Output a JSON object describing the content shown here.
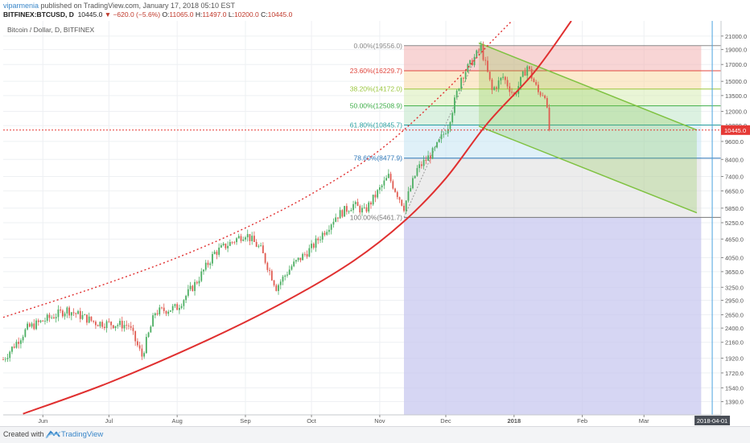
{
  "header": {
    "author": "viparmenia",
    "published": "published on TradingView.com, January 17, 2018 05:10 EST",
    "symbol": "BITFINEX:BTCUSD, D",
    "last": "10445.0",
    "change": "▼ −620.0 (−5.6%)",
    "o_label": "O:",
    "o": "11065.0",
    "h_label": "H:",
    "h": "11497.0",
    "l_label": "L:",
    "l": "10200.0",
    "c_label": "C:",
    "c": "10445.0"
  },
  "footer": {
    "created_with": "Created with",
    "brand": "TradingView"
  },
  "chart_data": {
    "type": "candlestick",
    "title": "Bitcoin / Dollar, D, BITFINEX",
    "scale": "log",
    "ylim": [
      1260,
      23500
    ],
    "xlim": [
      "2017-05-14",
      "2018-04-05"
    ],
    "x_ticks": [
      {
        "date": "2017-06-01",
        "label": "Jun"
      },
      {
        "date": "2017-07-01",
        "label": "Jul"
      },
      {
        "date": "2017-08-01",
        "label": "Aug"
      },
      {
        "date": "2017-09-01",
        "label": "Sep"
      },
      {
        "date": "2017-10-01",
        "label": "Oct"
      },
      {
        "date": "2017-11-01",
        "label": "Nov"
      },
      {
        "date": "2017-12-01",
        "label": "Dec"
      },
      {
        "date": "2018-01-01",
        "label": "2018"
      },
      {
        "date": "2018-02-01",
        "label": "Feb"
      },
      {
        "date": "2018-03-01",
        "label": "Mar"
      }
    ],
    "y_ticks": [
      21000,
      19000,
      17000,
      15000,
      13500,
      12000,
      10800,
      9600,
      8400,
      7400,
      6650,
      5850,
      5250,
      4650,
      4050,
      3650,
      3250,
      2950,
      2650,
      2400,
      2160,
      1920,
      1720,
      1540,
      1390
    ],
    "last_price": {
      "value": 10445,
      "label": "10445.0",
      "color": "#e53935"
    },
    "vertical_marker": {
      "date": "2018-04-01",
      "label": "2018-04-01",
      "color": "#4aa3df"
    },
    "fib_retracement": {
      "start_date": "2017-11-12",
      "end_date": "2018-03-27",
      "levels": [
        {
          "ratio": "0.00%",
          "price": 19556.0,
          "label": "0.00%(19556.0)",
          "color": "#888888",
          "fill": "#f2b3b3"
        },
        {
          "ratio": "23.60%",
          "price": 16229.7,
          "label": "23.60%(16229.7)",
          "color": "#e0473e",
          "fill": "#f9d9a4"
        },
        {
          "ratio": "38.20%",
          "price": 14172.0,
          "label": "38.20%(14172.0)",
          "color": "#9bc63e",
          "fill": "#d7ecb4"
        },
        {
          "ratio": "50.00%",
          "price": 12508.9,
          "label": "50.00%(12508.9)",
          "color": "#3fae49",
          "fill": "#bfe6c8"
        },
        {
          "ratio": "61.80%",
          "price": 10845.7,
          "label": "61.80%(10845.7)",
          "color": "#2aa1a1",
          "fill": "#c4e3f2"
        },
        {
          "ratio": "78.60%",
          "price": 8477.9,
          "label": "78.60%(8477.9)",
          "color": "#2e77b8",
          "fill": "#dcdcdc"
        },
        {
          "ratio": "100.00%",
          "price": 5461.7,
          "label": "100.00%(5461.7)",
          "color": "#777777",
          "fill": "#c8c8ef"
        }
      ]
    },
    "channel": {
      "upper": [
        {
          "date": "2017-12-16",
          "price": 19950
        },
        {
          "date": "2018-03-25",
          "price": 10450
        }
      ],
      "lower": [
        {
          "date": "2017-12-16",
          "price": 10750
        },
        {
          "date": "2018-03-25",
          "price": 5650
        }
      ],
      "color": "#7fc241"
    },
    "parabola": {
      "points": [
        {
          "date": "2017-05-23",
          "price": 1270
        },
        {
          "date": "2017-07-01",
          "price": 1600
        },
        {
          "date": "2017-08-15",
          "price": 2200
        },
        {
          "date": "2017-09-20",
          "price": 2950
        },
        {
          "date": "2017-10-20",
          "price": 3950
        },
        {
          "date": "2017-11-12",
          "price": 5300
        },
        {
          "date": "2017-12-01",
          "price": 7300
        },
        {
          "date": "2017-12-20",
          "price": 11000
        },
        {
          "date": "2018-01-10",
          "price": 16000
        },
        {
          "date": "2018-01-27",
          "price": 23500
        }
      ],
      "color": "#e03030"
    },
    "upper_dotted": {
      "points": [
        {
          "date": "2017-05-14",
          "price": 2600
        },
        {
          "date": "2017-06-25",
          "price": 3250
        },
        {
          "date": "2017-08-01",
          "price": 4050
        },
        {
          "date": "2017-09-01",
          "price": 5050
        },
        {
          "date": "2017-10-01",
          "price": 6500
        },
        {
          "date": "2017-11-01",
          "price": 9000
        },
        {
          "date": "2017-12-01",
          "price": 14000
        },
        {
          "date": "2017-12-20",
          "price": 19556
        },
        {
          "date": "2017-12-31",
          "price": 23500
        }
      ],
      "color": "#e03030"
    },
    "price_path": [
      {
        "date": "2017-05-14",
        "price": 1900
      },
      {
        "date": "2017-05-25",
        "price": 2400
      },
      {
        "date": "2017-06-12",
        "price": 2750
      },
      {
        "date": "2017-06-25",
        "price": 2500
      },
      {
        "date": "2017-07-10",
        "price": 2450
      },
      {
        "date": "2017-07-16",
        "price": 1950
      },
      {
        "date": "2017-07-22",
        "price": 2700
      },
      {
        "date": "2017-08-01",
        "price": 2800
      },
      {
        "date": "2017-08-10",
        "price": 3400
      },
      {
        "date": "2017-08-18",
        "price": 4200
      },
      {
        "date": "2017-09-01",
        "price": 4850
      },
      {
        "date": "2017-09-08",
        "price": 4300
      },
      {
        "date": "2017-09-15",
        "price": 3250
      },
      {
        "date": "2017-09-22",
        "price": 3800
      },
      {
        "date": "2017-10-01",
        "price": 4350
      },
      {
        "date": "2017-10-12",
        "price": 5500
      },
      {
        "date": "2017-10-20",
        "price": 6000
      },
      {
        "date": "2017-10-25",
        "price": 5700
      },
      {
        "date": "2017-11-05",
        "price": 7400
      },
      {
        "date": "2017-11-12",
        "price": 5900
      },
      {
        "date": "2017-11-18",
        "price": 7800
      },
      {
        "date": "2017-11-26",
        "price": 9000
      },
      {
        "date": "2017-12-02",
        "price": 10800
      },
      {
        "date": "2017-12-08",
        "price": 15500
      },
      {
        "date": "2017-12-12",
        "price": 17000
      },
      {
        "date": "2017-12-17",
        "price": 19300
      },
      {
        "date": "2017-12-22",
        "price": 14000
      },
      {
        "date": "2017-12-27",
        "price": 15500
      },
      {
        "date": "2018-01-01",
        "price": 13500
      },
      {
        "date": "2018-01-07",
        "price": 16800
      },
      {
        "date": "2018-01-12",
        "price": 13800
      },
      {
        "date": "2018-01-15",
        "price": 13700
      },
      {
        "date": "2018-01-17",
        "price": 10445
      }
    ]
  }
}
